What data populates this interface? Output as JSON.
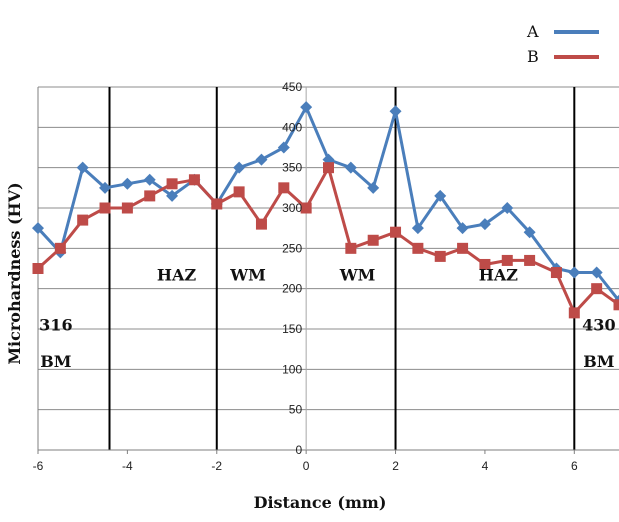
{
  "chart_data": {
    "type": "line",
    "title": "",
    "xlabel": "Distance (mm)",
    "ylabel": "Microhardness (HV)",
    "xlim": [
      -6,
      7
    ],
    "ylim": [
      0,
      450
    ],
    "x_ticks": [
      "-6",
      "-4",
      "-2",
      "0",
      "2",
      "4",
      "6"
    ],
    "x_tick_values": [
      -6,
      -4,
      -2,
      0,
      2,
      4,
      6
    ],
    "y_ticks": [
      "0",
      "50",
      "100",
      "150",
      "200",
      "250",
      "300",
      "350",
      "400",
      "450"
    ],
    "y_tick_values": [
      0,
      50,
      100,
      150,
      200,
      250,
      300,
      350,
      400,
      450
    ],
    "grid": "horizontal",
    "legend_position": "top-right",
    "series": [
      {
        "name": "A",
        "color": "#4a7ebb",
        "marker": "diamond",
        "x": [
          -6,
          -5.5,
          -5,
          -4.5,
          -4,
          -3.5,
          -3,
          -2.5,
          -2,
          -1.5,
          -1,
          -0.5,
          0,
          0.5,
          1,
          1.5,
          2,
          2.5,
          3,
          3.5,
          4,
          4.5,
          5,
          5.6,
          6,
          6.5,
          7
        ],
        "y": [
          275,
          245,
          350,
          325,
          330,
          335,
          315,
          335,
          305,
          350,
          360,
          375,
          425,
          360,
          350,
          325,
          420,
          275,
          315,
          275,
          280,
          300,
          270,
          225,
          220,
          220,
          185
        ]
      },
      {
        "name": "B",
        "color": "#be4b48",
        "marker": "square",
        "x": [
          -6,
          -5.5,
          -5,
          -4.5,
          -4,
          -3.5,
          -3,
          -2.5,
          -2,
          -1.5,
          -1,
          -0.5,
          0,
          0.5,
          1,
          1.5,
          2,
          2.5,
          3,
          3.5,
          4,
          4.5,
          5,
          5.6,
          6,
          6.5,
          7
        ],
        "y": [
          225,
          250,
          285,
          300,
          300,
          315,
          330,
          335,
          305,
          320,
          280,
          325,
          300,
          350,
          250,
          260,
          270,
          250,
          240,
          250,
          230,
          235,
          235,
          220,
          170,
          200,
          180
        ]
      }
    ],
    "vertical_lines": [
      -4.4,
      -2,
      2,
      6
    ],
    "annotations": [
      {
        "text": "HAZ",
        "x": -2.9,
        "y": 210
      },
      {
        "text": "WM",
        "x": -1.3,
        "y": 210
      },
      {
        "text": "WM",
        "x": 1.15,
        "y": 210
      },
      {
        "text": "HAZ",
        "x": 4.3,
        "y": 210
      },
      {
        "text": "316",
        "x": -5.6,
        "y": 148
      },
      {
        "text": "BM",
        "x": -5.6,
        "y": 103
      },
      {
        "text": "430",
        "x": 6.55,
        "y": 148
      },
      {
        "text": "BM",
        "x": 6.55,
        "y": 103
      }
    ]
  }
}
